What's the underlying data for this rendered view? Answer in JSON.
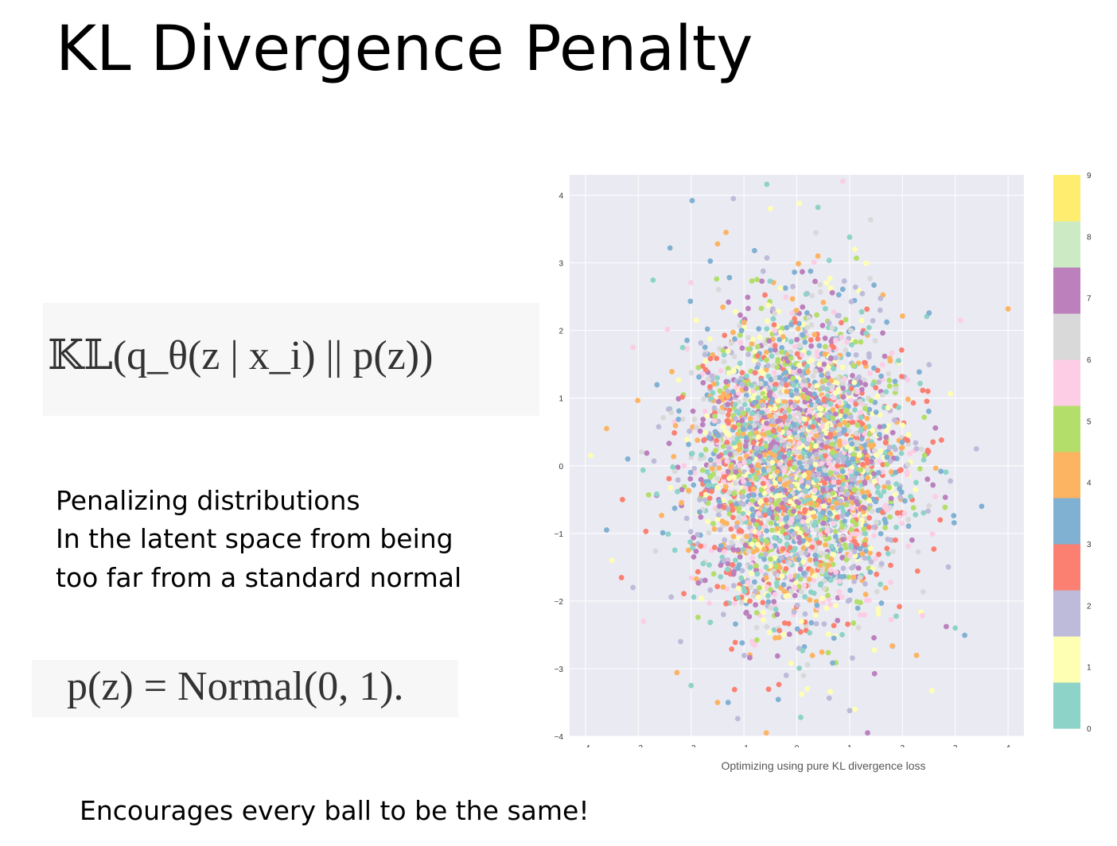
{
  "slide": {
    "title": "KL Divergence Penalty",
    "formula_kl": "𝕂𝕃(q_θ(z | x_i) || p(z))",
    "body_lines": [
      "Penalizing distributions",
      "In the latent space from being",
      "too far from a standard normal"
    ],
    "formula_pz": "p(z) = Normal(0, 1).",
    "footer": "Encourages every ball to be the same!"
  },
  "chart_data": {
    "type": "scatter",
    "title": "",
    "caption": "Optimizing using pure KL divergence loss",
    "xlabel": "",
    "ylabel": "",
    "xlim": [
      -4.3,
      4.3
    ],
    "ylim": [
      -4,
      4.3
    ],
    "xticks": [
      -4,
      -3,
      -2,
      -1,
      0,
      1,
      2,
      3,
      4
    ],
    "yticks": [
      -4,
      -3,
      -2,
      -1,
      0,
      1,
      2,
      3,
      4
    ],
    "xtick_labels": [
      "−4",
      "−3",
      "−2",
      "−1",
      "0",
      "1",
      "2",
      "3",
      "4"
    ],
    "ytick_labels": [
      "−4",
      "−3",
      "−2",
      "−1",
      "0",
      "1",
      "2",
      "3",
      "4"
    ],
    "grid": true,
    "distribution": "approximately standard normal cloud of points centered at (0, 0), color = class 0–9",
    "points": [
      {
        "x": -1.2,
        "y": 3.95,
        "c": 2
      },
      {
        "x": -0.5,
        "y": 3.8,
        "c": 1
      },
      {
        "x": 0.05,
        "y": 3.88,
        "c": 1
      },
      {
        "x": 0.4,
        "y": 3.82,
        "c": 0
      },
      {
        "x": -2.4,
        "y": 3.22,
        "c": 4
      },
      {
        "x": -1.5,
        "y": 3.28,
        "c": 5
      },
      {
        "x": -0.8,
        "y": 3.18,
        "c": 4
      },
      {
        "x": 1.0,
        "y": 3.38,
        "c": 0
      },
      {
        "x": 0.4,
        "y": 3.1,
        "c": 5
      },
      {
        "x": 1.1,
        "y": 3.2,
        "c": 1
      },
      {
        "x": -3.1,
        "y": 1.75,
        "c": 7
      },
      {
        "x": 3.1,
        "y": 2.15,
        "c": 7
      },
      {
        "x": 4.0,
        "y": 2.32,
        "c": 5
      },
      {
        "x": -3.9,
        "y": 0.15,
        "c": 1
      },
      {
        "x": -3.6,
        "y": 0.55,
        "c": 5
      },
      {
        "x": -3.2,
        "y": 0.1,
        "c": 4
      },
      {
        "x": 3.5,
        "y": -0.6,
        "c": 4
      },
      {
        "x": 3.4,
        "y": 0.25,
        "c": 2
      },
      {
        "x": -3.6,
        "y": -0.95,
        "c": 4
      },
      {
        "x": -3.5,
        "y": -1.4,
        "c": 1
      },
      {
        "x": -3.1,
        "y": -1.8,
        "c": 2
      },
      {
        "x": 3.0,
        "y": -2.4,
        "c": 0
      },
      {
        "x": -2.9,
        "y": -2.3,
        "c": 7
      },
      {
        "x": -1.5,
        "y": -3.5,
        "c": 5
      },
      {
        "x": -1.3,
        "y": -3.5,
        "c": 4
      },
      {
        "x": -2.0,
        "y": -3.25,
        "c": 0
      },
      {
        "x": 1.1,
        "y": -3.6,
        "c": 1
      },
      {
        "x": 1.0,
        "y": -3.62,
        "c": 2
      },
      {
        "x": 0.2,
        "y": -3.3,
        "c": 1
      },
      {
        "x": -0.2,
        "y": -3.1,
        "c": 2
      },
      {
        "x": -2.2,
        "y": -2.6,
        "c": 2
      },
      {
        "x": -3.3,
        "y": -0.5,
        "c": 3
      }
    ],
    "random_points": {
      "count": 3600,
      "distribution": "normal",
      "mean": [
        0,
        0
      ],
      "std": [
        1.0,
        1.1
      ]
    }
  },
  "colorbar": {
    "ticks": [
      "0",
      "1",
      "2",
      "3",
      "4",
      "5",
      "6",
      "7",
      "8",
      "9"
    ],
    "colors": [
      "#8dd3c7",
      "#ffffb3",
      "#bebada",
      "#fb8072",
      "#80b1d3",
      "#fdb462",
      "#b3de69",
      "#fccde5",
      "#d9d9d9",
      "#bc80bd",
      "#ccebc5",
      "#ffed6f"
    ],
    "cell_colors": [
      "#8dd3c7",
      "#ffffb3",
      "#bebada",
      "#fb8072",
      "#80b1d3",
      "#fdb462",
      "#b3de69",
      "#fccde5",
      "#d9d9d9",
      "#bc80bd",
      "#ccebc5",
      "#ffed6f"
    ]
  },
  "colors": {
    "plot_background": "#eaeaf2",
    "grid": "#ffffff",
    "text": "#000000"
  }
}
